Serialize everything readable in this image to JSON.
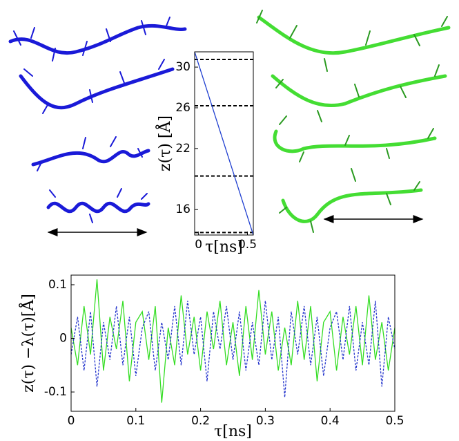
{
  "chart_data": [
    {
      "type": "line",
      "y_label": "z(τ) [Å]",
      "x_label": "τ[ns]",
      "x": [
        -0.04,
        0.56
      ],
      "xlim": [
        -0.04,
        0.56
      ],
      "xticks": [
        0,
        0.5
      ],
      "ylim": [
        13.5,
        31.5
      ],
      "yticks": [
        30,
        26,
        22,
        16
      ],
      "series": [
        {
          "color": "#1f3fd0",
          "line_style": "solid",
          "values": [
            31.5,
            13.5
          ]
        }
      ],
      "reference_lines": {
        "values": [
          30.75,
          26.2,
          19.3,
          13.75
        ],
        "color": "#000000",
        "line_style": "dashed"
      }
    },
    {
      "type": "line",
      "y_label": "z(τ) −λ(τ)[Å]",
      "x_label": "τ[ns]",
      "x": [
        0,
        0.01,
        0.02,
        0.03,
        0.04,
        0.05,
        0.06,
        0.07,
        0.08,
        0.09,
        0.1,
        0.11,
        0.12,
        0.13,
        0.14,
        0.15,
        0.16,
        0.17,
        0.18,
        0.19,
        0.2,
        0.21,
        0.22,
        0.23,
        0.24,
        0.25,
        0.26,
        0.27,
        0.28,
        0.29,
        0.3,
        0.31,
        0.32,
        0.33,
        0.34,
        0.35,
        0.36,
        0.37,
        0.38,
        0.39,
        0.4,
        0.41,
        0.42,
        0.43,
        0.44,
        0.45,
        0.46,
        0.47,
        0.48,
        0.49,
        0.5
      ],
      "xlim": [
        0,
        0.5
      ],
      "xticks": [
        0,
        0.1,
        0.2,
        0.3,
        0.4,
        0.5
      ],
      "ylim": [
        -0.136,
        0.118
      ],
      "yticks": [
        0.1,
        0,
        -0.1
      ],
      "series": [
        {
          "color": "#33dd22",
          "line_style": "solid",
          "values": [
            0.02,
            -0.05,
            0.06,
            -0.03,
            0.11,
            -0.06,
            0.04,
            -0.02,
            0.07,
            -0.08,
            0.03,
            0.05,
            -0.04,
            0.06,
            -0.12,
            0.02,
            -0.05,
            0.08,
            -0.03,
            0.04,
            -0.06,
            0.05,
            -0.02,
            0.07,
            -0.05,
            0.03,
            -0.07,
            0.06,
            -0.04,
            0.09,
            -0.03,
            0.05,
            -0.06,
            0.02,
            -0.05,
            0.07,
            -0.04,
            0.06,
            -0.08,
            0.03,
            0.05,
            -0.06,
            0.04,
            -0.03,
            0.06,
            -0.05,
            0.08,
            -0.04,
            0.03,
            -0.06,
            0.02
          ]
        },
        {
          "color": "#2233cc",
          "line_style": "dashed",
          "values": [
            -0.03,
            0.04,
            -0.06,
            0.05,
            -0.09,
            0.03,
            -0.04,
            0.06,
            -0.05,
            0.04,
            -0.07,
            0.02,
            0.05,
            -0.06,
            0.03,
            -0.04,
            0.06,
            -0.05,
            0.07,
            -0.03,
            0.04,
            -0.08,
            0.05,
            -0.02,
            0.06,
            -0.04,
            0.05,
            -0.06,
            0.03,
            -0.05,
            0.07,
            -0.04,
            0.04,
            -0.11,
            0.05,
            -0.03,
            0.06,
            -0.05,
            0.04,
            -0.07,
            0.02,
            0.05,
            -0.04,
            0.06,
            -0.06,
            0.03,
            -0.05,
            0.07,
            -0.09,
            0.04,
            -0.02
          ]
        }
      ]
    }
  ]
}
